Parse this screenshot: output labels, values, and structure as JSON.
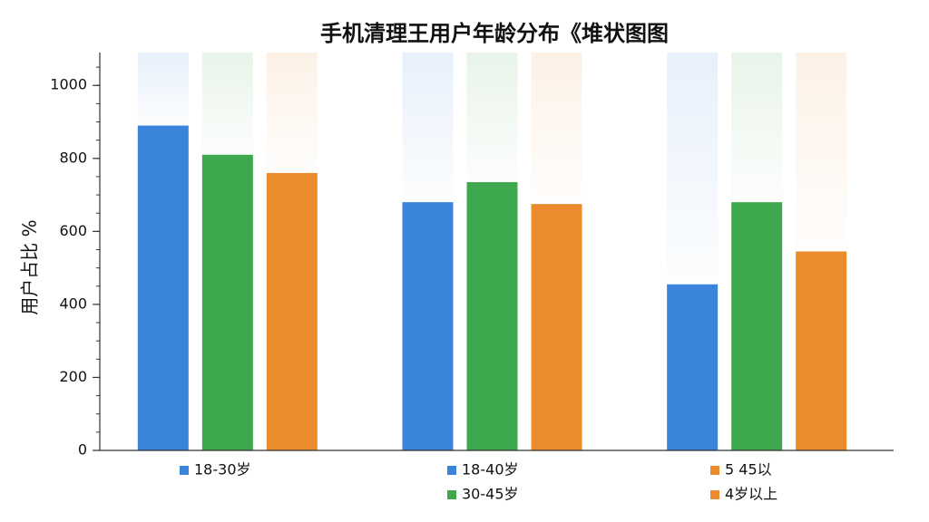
{
  "chart_data": {
    "type": "bar",
    "title": "手机清理王用户年龄分布《堆状图图",
    "y_label": "用户占比 %",
    "categories": [
      null,
      null,
      null
    ],
    "series": [
      {
        "color": "#3a84dc",
        "values": [
          890,
          680,
          455
        ]
      },
      {
        "color": "#3ea84e",
        "values": [
          810,
          735,
          680
        ]
      },
      {
        "color": "#ec8a2e",
        "values": [
          760,
          675,
          545
        ]
      }
    ],
    "legend": [
      {
        "label": "18-30岁",
        "color": "#3a84dc"
      },
      {
        "label": "18-40岁",
        "color": "#3a84dc"
      },
      {
        "label": "30-45岁",
        "color": "#3ea84e"
      },
      {
        "label": "5 45以",
        "color": "#ec8a2e"
      },
      {
        "label": "4岁以上",
        "color": "#ec8a2e"
      }
    ],
    "ylim": [
      0,
      1090
    ],
    "yticks": [
      0,
      200,
      400,
      600,
      800,
      1000
    ]
  }
}
